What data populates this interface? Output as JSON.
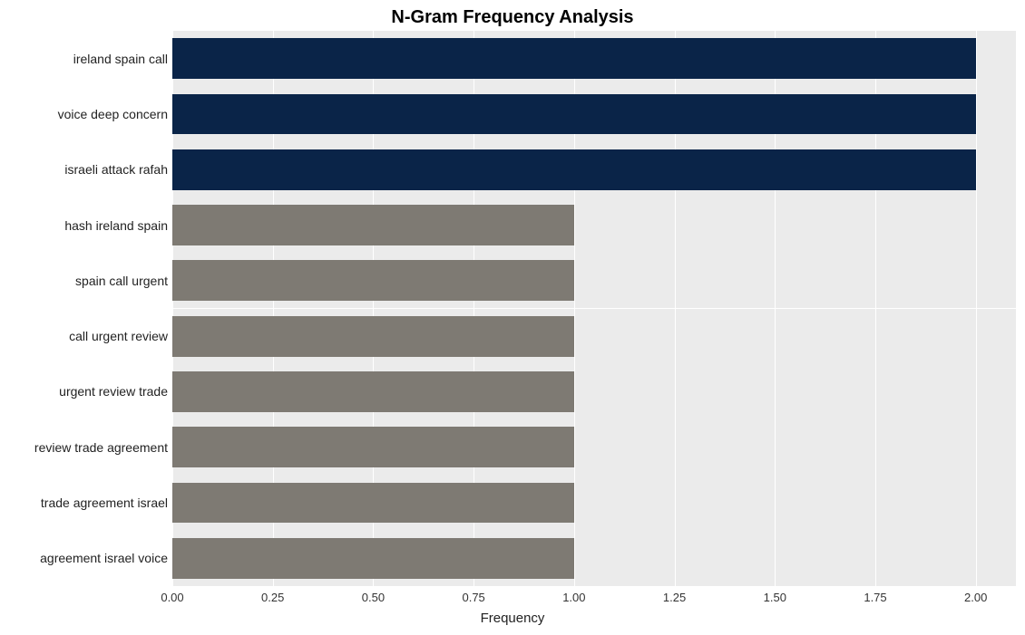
{
  "chart": {
    "type": "bar-horizontal",
    "title": "N-Gram Frequency Analysis",
    "title_fontsize": 20,
    "title_fontweight": "bold",
    "title_color": "#000000",
    "xlabel": "Frequency",
    "xlabel_fontsize": 15,
    "xlabel_color": "#222222",
    "background_color": "#ffffff",
    "plot_background": "#ffffff",
    "band_color": "#ebebeb",
    "gridline_color": "#ffffff",
    "bar_height_ratio": 0.73,
    "xlim": [
      0,
      2.1
    ],
    "x_ticks": [
      0.0,
      0.25,
      0.5,
      0.75,
      1.0,
      1.25,
      1.5,
      1.75,
      2.0
    ],
    "x_tick_labels": [
      "0.00",
      "0.25",
      "0.50",
      "0.75",
      "1.00",
      "1.25",
      "1.50",
      "1.75",
      "2.00"
    ],
    "x_tick_fontsize": 13,
    "y_tick_fontsize": 14,
    "categories": [
      "ireland spain call",
      "voice deep concern",
      "israeli attack rafah",
      "hash ireland spain",
      "spain call urgent",
      "call urgent review",
      "urgent review trade",
      "review trade agreement",
      "trade agreement israel",
      "agreement israel voice"
    ],
    "values": [
      2,
      2,
      2,
      1,
      1,
      1,
      1,
      1,
      1,
      1
    ],
    "bar_colors": [
      "#0a2448",
      "#0a2448",
      "#0a2448",
      "#7e7a73",
      "#7e7a73",
      "#7e7a73",
      "#7e7a73",
      "#7e7a73",
      "#7e7a73",
      "#7e7a73"
    ]
  }
}
